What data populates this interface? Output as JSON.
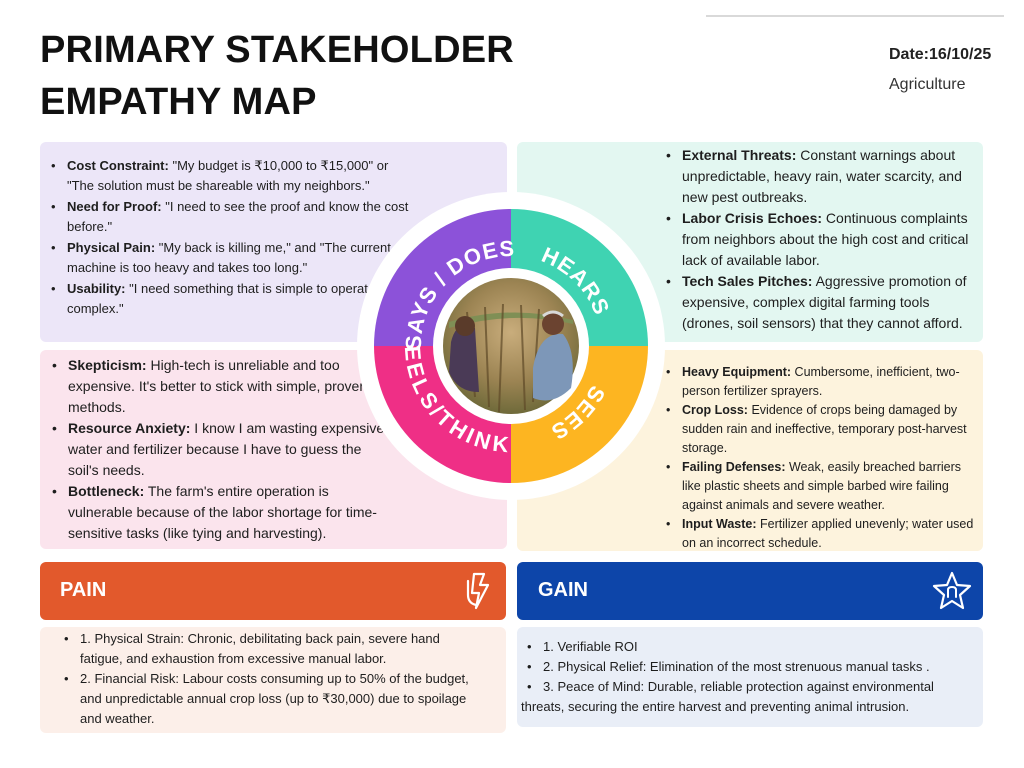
{
  "header": {
    "title_line1": "PRIMARY STAKEHOLDER",
    "title_line2": "EMPATHY MAP",
    "date": "Date:16/10/25",
    "category": "Agriculture"
  },
  "says": {
    "label": "SAYS / DOES",
    "items": [
      {
        "bold": "Cost Constraint:",
        "text": " \"My budget is ₹10,000 to ₹15,000\" or \"The solution must be shareable with my neighbors.\""
      },
      {
        "bold": "Need for Proof:",
        "text": " \"I need to see the proof and know the cost before.\""
      },
      {
        "bold": "Physical Pain:",
        "text": " \"My back is killing me,\" and \"The current machine is too heavy and takes too long.\""
      },
      {
        "bold": "Usability:",
        "text": " \"I need something that is simple to operate, not complex.\""
      }
    ]
  },
  "hears": {
    "label": "HEARS",
    "items": [
      {
        "bold": "External Threats:",
        "text": " Constant warnings about unpredictable, heavy rain, water scarcity, and new pest outbreaks."
      },
      {
        "bold": "Labor Crisis Echoes:",
        "text": " Continuous complaints from neighbors about the high cost and critical lack of available labor."
      },
      {
        "bold": "Tech Sales Pitches:",
        "text": " Aggressive promotion of expensive, complex digital farming tools (drones, soil sensors) that they cannot afford."
      }
    ]
  },
  "feels": {
    "label": "FEELS/THINKS",
    "items": [
      {
        "bold": "Skepticism:",
        "text": " High-tech is unreliable and too expensive. It's better to stick with simple, proven methods."
      },
      {
        "bold": "Resource Anxiety:",
        "text": " I know I am wasting expensive water and fertilizer because I have to guess the soil's needs."
      },
      {
        "bold": "Bottleneck:",
        "text": " The farm's entire operation is vulnerable because of the labor shortage for time-sensitive tasks (like tying and harvesting)."
      }
    ]
  },
  "sees": {
    "label": "SEES",
    "items": [
      {
        "bold": "Heavy Equipment:",
        "text": " Cumbersome, inefficient, two-person fertilizer sprayers."
      },
      {
        "bold": "Crop Loss:",
        "text": " Evidence of crops being damaged by sudden rain and ineffective, temporary post-harvest storage."
      },
      {
        "bold": "Failing Defenses:",
        "text": " Weak, easily breached barriers like plastic sheets and simple barbed wire failing against animals and severe weather."
      },
      {
        "bold": "Input Waste:",
        "text": " Fertilizer applied unevenly; water used on an incorrect schedule."
      }
    ]
  },
  "pain": {
    "title": "PAIN",
    "icon": "lightning-hand-icon",
    "items": [
      "1. Physical Strain: Chronic, debilitating back pain, severe hand fatigue, and exhaustion from excessive manual labor.",
      "2. Financial Risk: Labour costs consuming up to 50% of the budget, and unpredictable annual crop loss (up to ₹30,000) due to spoilage and weather."
    ]
  },
  "gain": {
    "title": "GAIN",
    "icon": "star-badge-icon",
    "items": [
      "1. Verifiable ROI",
      "2. Physical Relief: Elimination of the most strenuous manual tasks .",
      "3. Peace of Mind: Durable, reliable protection against environmental threats, securing the entire harvest and preventing animal intrusion."
    ]
  },
  "colors": {
    "says": "#8c52d9",
    "hears": "#3fd3b2",
    "feels": "#ef2f86",
    "sees": "#fdb521",
    "pain": "#e2592c",
    "gain": "#0d45a9"
  }
}
